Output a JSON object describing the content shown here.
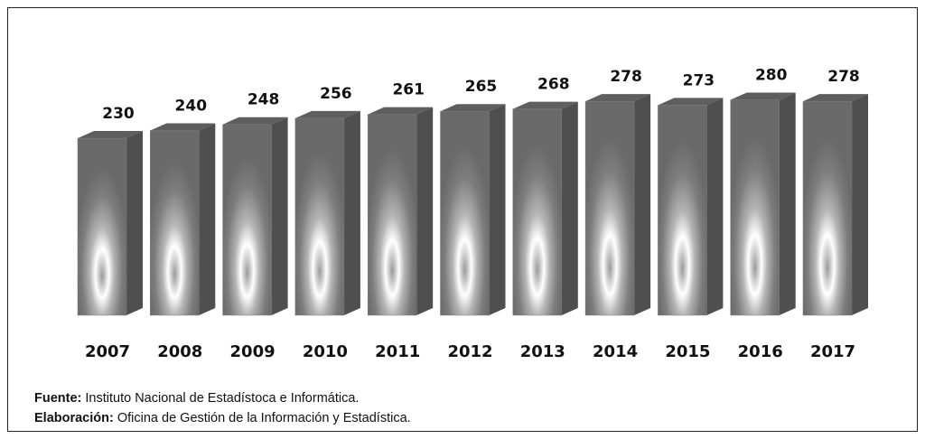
{
  "chart_data": {
    "type": "bar",
    "categories": [
      "2007",
      "2008",
      "2009",
      "2010",
      "2011",
      "2012",
      "2013",
      "2014",
      "2015",
      "2016",
      "2017"
    ],
    "values": [
      230,
      240,
      248,
      256,
      261,
      265,
      268,
      278,
      273,
      280,
      278
    ],
    "color": "#7a7a7a"
  },
  "footnotes": [
    {
      "label": "Fuente:",
      "text": "Instituto Nacional de Estadístoca e Informática."
    },
    {
      "label": "Elaboración:",
      "text": "Oficina de Gestión de la Información y Estadística."
    }
  ]
}
